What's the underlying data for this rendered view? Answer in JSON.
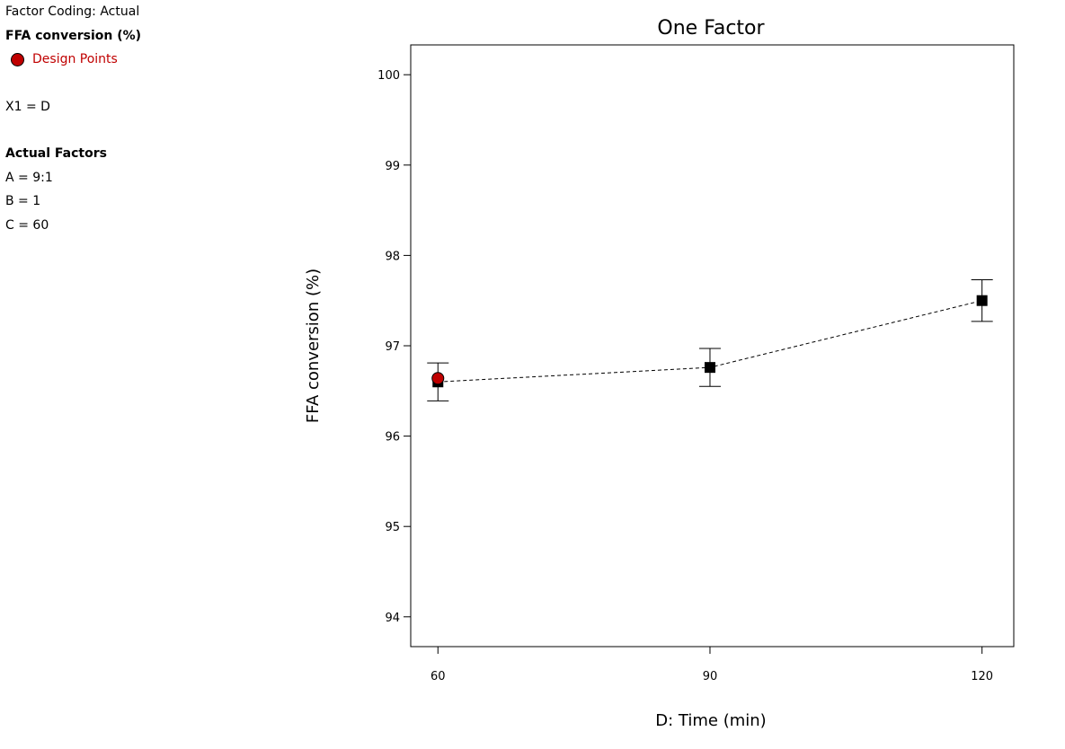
{
  "sidebar": {
    "factor_coding": "Factor Coding: Actual",
    "response_title": "FFA conversion (%)",
    "legend": {
      "label": "Design Points",
      "color": "#c00000"
    },
    "x1_line": "X1 = D",
    "actual_factors_title": "Actual Factors",
    "actual_factors": [
      "A = 9:1",
      "B = 1",
      "C = 60"
    ]
  },
  "chart_data": {
    "type": "line",
    "title": "One Factor",
    "xlabel": "D: Time (min)",
    "ylabel": "FFA conversion (%)",
    "xlim": [
      57,
      123.5
    ],
    "ylim": [
      93.67,
      100.33
    ],
    "x_ticks": [
      60,
      90,
      120
    ],
    "y_ticks": [
      94,
      95,
      96,
      97,
      98,
      99,
      100
    ],
    "series": [
      {
        "x": [
          60,
          90,
          120
        ],
        "y": [
          96.6,
          96.76,
          97.5
        ],
        "lower": [
          96.39,
          96.55,
          97.27
        ],
        "upper": [
          96.81,
          96.97,
          97.73
        ],
        "line_style": "dashed",
        "marker": "square",
        "color": "#000000"
      }
    ],
    "design_points": {
      "x": [
        60
      ],
      "y": [
        96.64
      ],
      "color": "#c00000"
    },
    "grid": false
  }
}
